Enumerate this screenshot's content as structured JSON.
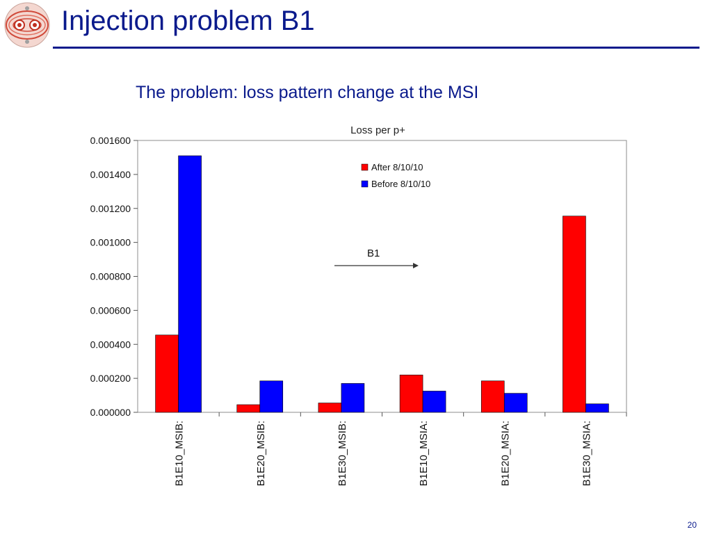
{
  "slide": {
    "title": "Injection problem B1",
    "subtitle": "The problem: loss pattern change at the MSI",
    "page_number": "20"
  },
  "chart_data": {
    "type": "bar",
    "title": "Loss per p+",
    "categories": [
      "B1E10_MSIB:",
      "B1E20_MSIB:",
      "B1E30_MSIB:",
      "B1E10_MSIA:",
      "B1E20_MSIA:",
      "B1E30_MSIA:"
    ],
    "series": [
      {
        "name": "After 8/10/10",
        "color": "#ff0000",
        "values": [
          0.000455,
          4.5e-05,
          5.5e-05,
          0.00022,
          0.000185,
          0.001155
        ]
      },
      {
        "name": "Before 8/10/10",
        "color": "#0000ff",
        "values": [
          0.00151,
          0.000185,
          0.00017,
          0.000125,
          0.000112,
          5e-05
        ]
      }
    ],
    "ylim": [
      0,
      0.0016
    ],
    "yticks": [
      "0.000000",
      "0.000200",
      "0.000400",
      "0.000600",
      "0.000800",
      "0.001000",
      "0.001200",
      "0.001400",
      "0.001600"
    ],
    "grid": false,
    "legend_position": "top-right",
    "annotation": {
      "text": "B1",
      "arrow": "right"
    }
  }
}
